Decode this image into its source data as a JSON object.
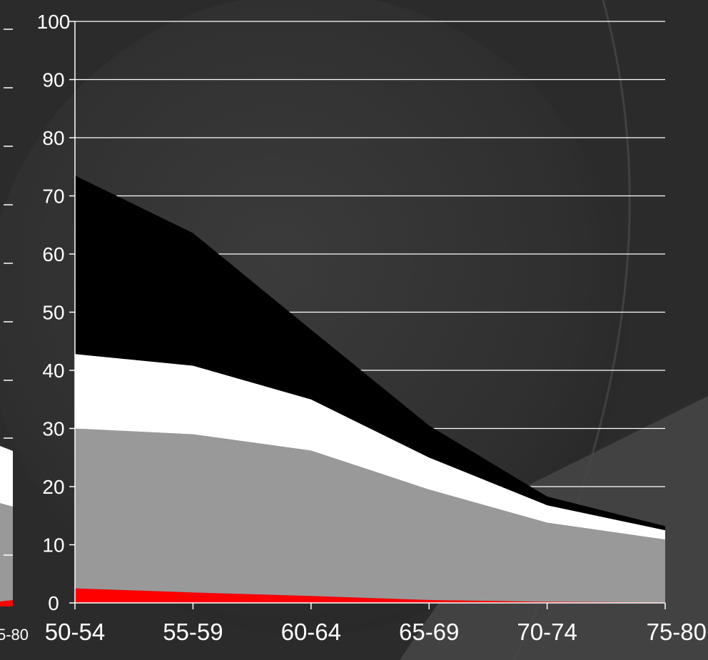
{
  "chart_data": {
    "type": "area",
    "stacked": true,
    "categories": [
      "50-54",
      "55-59",
      "60-64",
      "65-69",
      "70-74",
      "75-80"
    ],
    "series": [
      {
        "values": [
          2.5,
          1.8,
          1.2,
          0.5,
          0.2,
          0.1
        ],
        "color": "#ff0000"
      },
      {
        "values": [
          27.5,
          27.2,
          25.0,
          19.0,
          13.6,
          10.8
        ],
        "color": "#999999"
      },
      {
        "values": [
          12.8,
          11.8,
          8.8,
          5.5,
          3.0,
          1.6
        ],
        "color": "#ffffff"
      },
      {
        "values": [
          30.7,
          22.8,
          12.0,
          5.5,
          1.5,
          0.7
        ],
        "color": "#000000"
      }
    ],
    "ylim": [
      0,
      100
    ],
    "yticks": [
      "0",
      "10",
      "20",
      "30",
      "40",
      "50",
      "60",
      "70",
      "80",
      "90",
      "100"
    ],
    "grid": true,
    "legend": "none"
  },
  "background_chart": {
    "left_edge_label": "5-80",
    "colors": {
      "red": "#ff0000",
      "gray": "#999999",
      "white": "#ffffff"
    }
  }
}
